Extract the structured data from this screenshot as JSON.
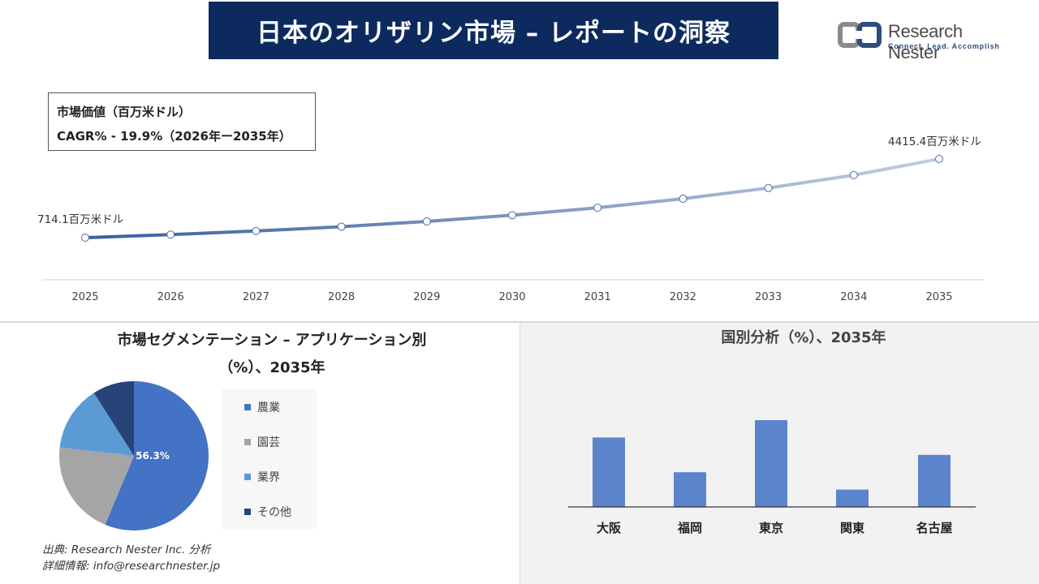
{
  "header": {
    "title": "日本のオリザリン市場 – レポートの洞察",
    "logo_name": "Research Nester",
    "logo_tagline": "Connect. Lead. Accomplish",
    "logo_color": "#2a4f7a"
  },
  "info_box": {
    "line1": "市場価値（百万米ドル）",
    "line2": "CAGR% - 19.9%（2026年ー2035年）"
  },
  "segment": {
    "title_line1": "市場セグメンテーション – アプリケーション別",
    "title_line2": "（%）、2035年"
  },
  "country": {
    "title": "国別分析（%）、2035年"
  },
  "source": {
    "line1": "出典: Research Nester Inc. 分析",
    "line2": "詳細情報: info@researchnester.jp"
  },
  "chart_data": [
    {
      "type": "line",
      "x": [
        "2025",
        "2026",
        "2027",
        "2028",
        "2029",
        "2030",
        "2031",
        "2032",
        "2033",
        "2034",
        "2035"
      ],
      "values": [
        714.1,
        856.2,
        1026.6,
        1230.9,
        1475.8,
        1769.5,
        2121.6,
        2543.8,
        3050.1,
        3657.0,
        4415.4
      ],
      "first_label": "714.1百万米ドル",
      "last_label": "4415.4百万米ドル",
      "color_start": "#3a5f9e",
      "color_end": "#c3cde2"
    },
    {
      "type": "pie",
      "labels": [
        "農業",
        "園芸",
        "業界",
        "その他"
      ],
      "values": [
        56.3,
        20.5,
        14.2,
        9.0
      ],
      "colors": [
        "#4472c4",
        "#a5a5a5",
        "#5b9bd5",
        "#264478"
      ],
      "data_label": "56.3%"
    },
    {
      "type": "bar",
      "categories": [
        "大阪",
        "福岡",
        "東京",
        "関東",
        "名古屋"
      ],
      "values": [
        28,
        14,
        35,
        7,
        21
      ],
      "color": "#5b84cc"
    }
  ]
}
